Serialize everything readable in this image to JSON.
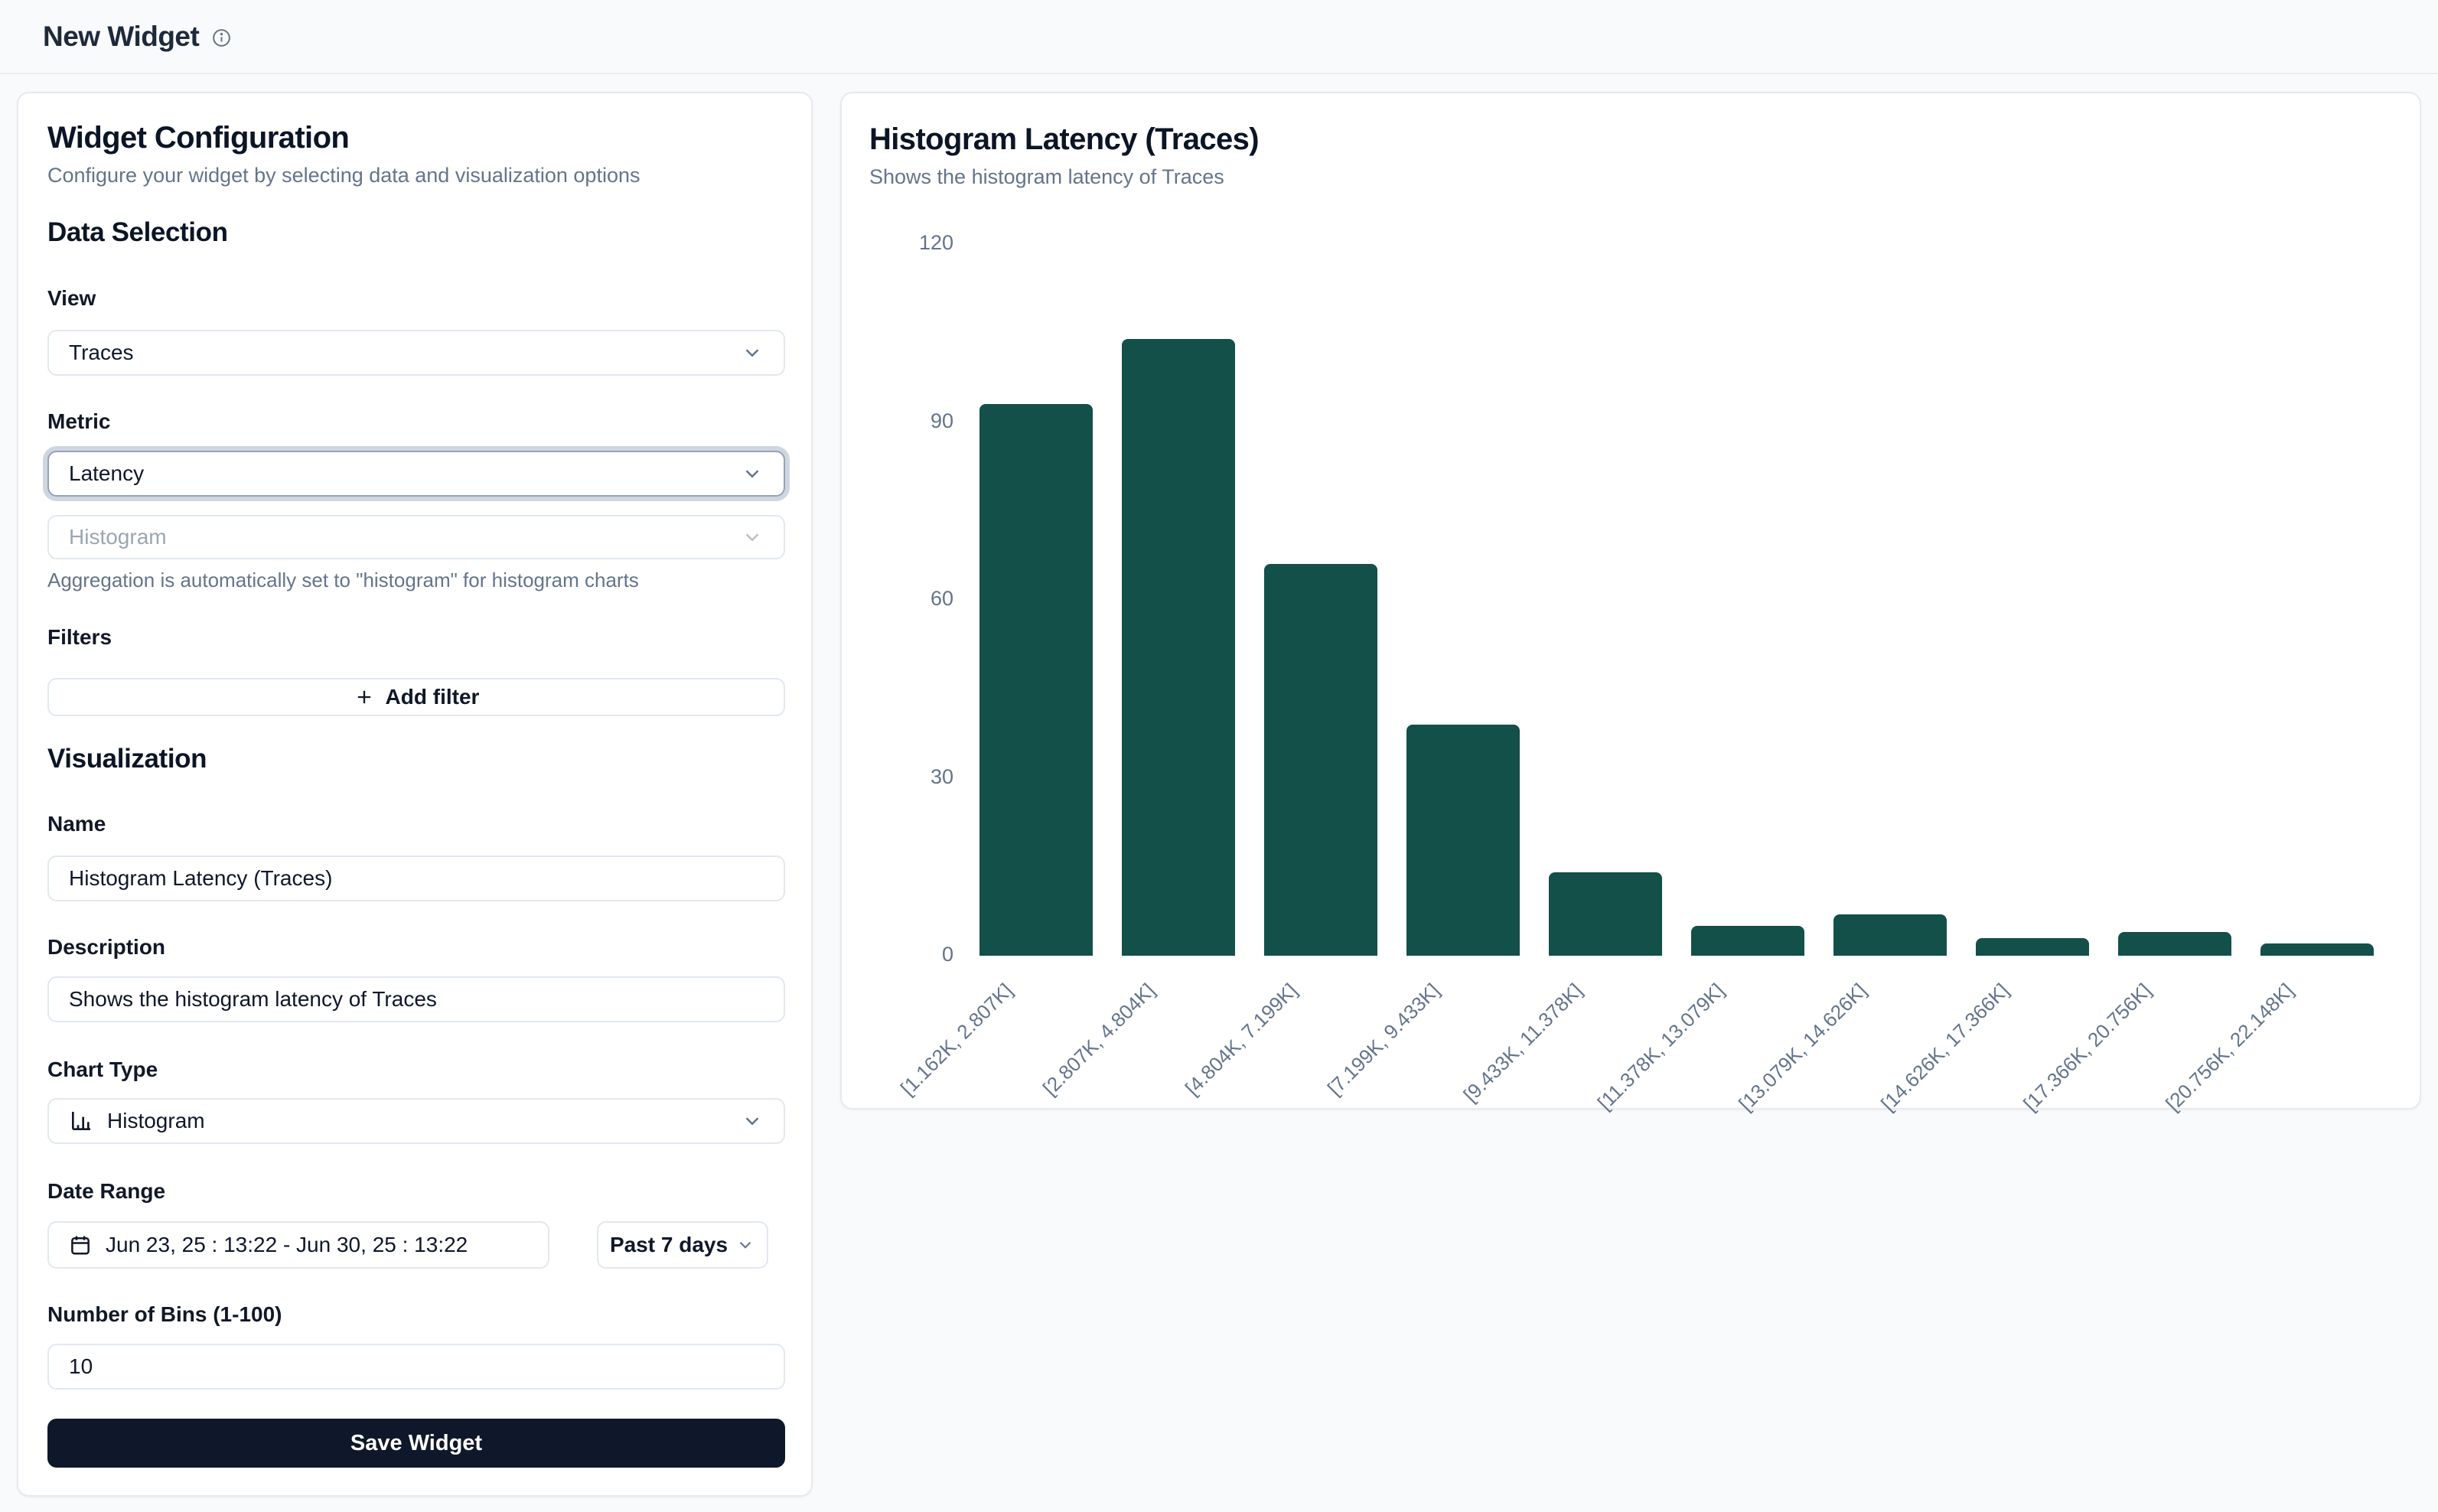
{
  "header": {
    "title": "New Widget",
    "info_icon": "info-circle"
  },
  "config_panel": {
    "title": "Widget Configuration",
    "subtitle": "Configure your widget by selecting data and visualization options",
    "data_selection": {
      "heading": "Data Selection",
      "view_label": "View",
      "view_value": "Traces",
      "metric_label": "Metric",
      "metric_value": "Latency",
      "aggregation_value": "Histogram",
      "aggregation_help": "Aggregation is automatically set to \"histogram\" for histogram charts",
      "filters_label": "Filters",
      "add_filter_label": "Add filter"
    },
    "visualization": {
      "heading": "Visualization",
      "name_label": "Name",
      "name_value": "Histogram Latency (Traces)",
      "description_label": "Description",
      "description_value": "Shows the histogram latency of Traces",
      "chart_type_label": "Chart Type",
      "chart_type_value": "Histogram",
      "chart_type_icon": "bar-chart-icon",
      "date_range_label": "Date Range",
      "date_range_value": "Jun 23, 25 : 13:22 - Jun 30, 25 : 13:22",
      "date_range_icon": "calendar-icon",
      "date_preset_value": "Past 7 days",
      "bins_label": "Number of Bins (1-100)",
      "bins_value": "10"
    },
    "save_label": "Save Widget"
  },
  "preview_panel": {
    "title": "Histogram Latency (Traces)",
    "subtitle": "Shows the histogram latency of Traces"
  },
  "chart_data": {
    "type": "bar",
    "title": "Histogram Latency (Traces)",
    "categories": [
      "[1.162K, 2.807K]",
      "[2.807K, 4.804K]",
      "[4.804K, 7.199K]",
      "[7.199K, 9.433K]",
      "[9.433K, 11.378K]",
      "[11.378K, 13.079K]",
      "[13.079K, 14.626K]",
      "[14.626K, 17.366K]",
      "[17.366K, 20.756K]",
      "[20.756K, 22.148K]"
    ],
    "values": [
      93,
      104,
      66,
      39,
      14,
      5,
      7,
      3,
      4,
      2
    ],
    "xlabel": "",
    "ylabel": "",
    "ylim": [
      0,
      120
    ],
    "yticks": [
      0,
      30,
      60,
      90,
      120
    ],
    "grid": false,
    "legend": false,
    "bar_color": "#135049",
    "axis_label_color": "#64748b"
  },
  "colors": {
    "accent_bar": "#135049",
    "save_button_bg": "#0f172a",
    "muted_text": "#64748b",
    "border": "#e2e8f0",
    "focus_ring": "#94a3b8",
    "page_bg": "#f9fafb"
  }
}
